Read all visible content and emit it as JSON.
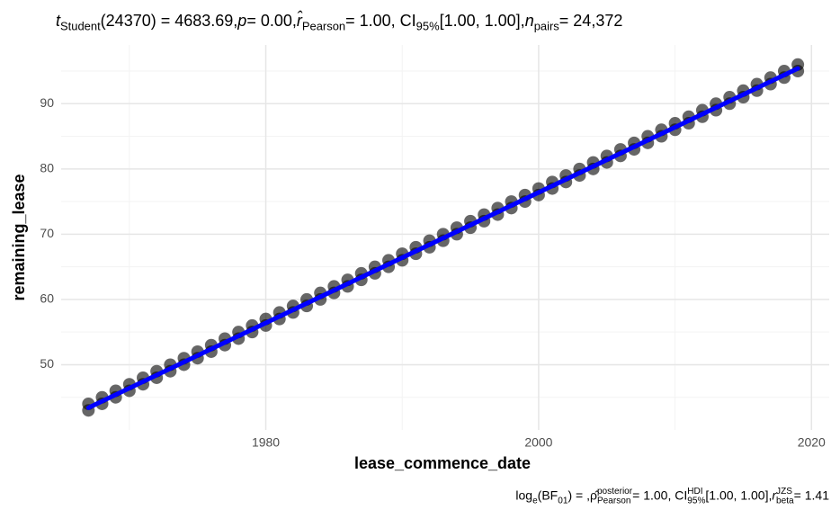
{
  "chart_data": {
    "type": "scatter",
    "title": [
      {
        "t": "t",
        "s": "italic"
      },
      {
        "t": "Student",
        "s": "sub"
      },
      {
        "t": "(24370) = 4683.69, ",
        "s": "normal"
      },
      {
        "t": "p",
        "s": "italic"
      },
      {
        "t": " = 0.00, ",
        "s": "normal"
      },
      {
        "t": "r̂",
        "s": "italic"
      },
      {
        "t": "Pearson",
        "s": "sub"
      },
      {
        "t": " = 1.00, CI",
        "s": "normal"
      },
      {
        "t": "95%",
        "s": "sub"
      },
      {
        "t": " [1.00, 1.00], ",
        "s": "normal"
      },
      {
        "t": "n",
        "s": "italic"
      },
      {
        "t": "pairs",
        "s": "sub"
      },
      {
        "t": " = 24,372",
        "s": "normal"
      }
    ],
    "caption": [
      {
        "t": "log",
        "s": "normal"
      },
      {
        "t": "e",
        "s": "sub"
      },
      {
        "t": "(BF",
        "s": "normal"
      },
      {
        "t": "01",
        "s": "sub"
      },
      {
        "t": ") = , ",
        "s": "normal"
      },
      {
        "t": "ρ̂",
        "s": "normal"
      },
      {
        "t": "posterior",
        "s": "sup"
      },
      {
        "t": "Pearson",
        "s": "sub"
      },
      {
        "t": " = 1.00, CI",
        "s": "normal"
      },
      {
        "t": "HDI",
        "s": "sup"
      },
      {
        "t": "95%",
        "s": "sub"
      },
      {
        "t": " [1.00, 1.00], ",
        "s": "normal"
      },
      {
        "t": "r",
        "s": "italic"
      },
      {
        "t": "JZS",
        "s": "sup"
      },
      {
        "t": "beta",
        "s": "sub"
      },
      {
        "t": " = 1.41",
        "s": "normal"
      }
    ],
    "x_label": "lease_commence_date",
    "y_label": "remaining_lease",
    "xlim": [
      1965,
      2021.3
    ],
    "ylim": [
      40,
      99
    ],
    "xticks": [
      1980,
      2000,
      2020
    ],
    "yticks": [
      50,
      60,
      70,
      80,
      90
    ],
    "xminor": [
      1970,
      1990,
      2010
    ],
    "yminor": [
      45,
      55,
      65,
      75,
      85,
      95
    ],
    "grid": true,
    "series": [
      {
        "color": "#000000",
        "x": [
          1967,
          1968,
          1969,
          1970,
          1971,
          1972,
          1973,
          1974,
          1975,
          1976,
          1977,
          1978,
          1979,
          1980,
          1981,
          1982,
          1983,
          1984,
          1985,
          1986,
          1987,
          1988,
          1989,
          1990,
          1991,
          1992,
          1993,
          1994,
          1995,
          1996,
          1997,
          1998,
          1999,
          2000,
          2001,
          2002,
          2003,
          2004,
          2005,
          2006,
          2007,
          2008,
          2009,
          2010,
          2011,
          2012,
          2013,
          2014,
          2015,
          2016,
          2017,
          2018,
          2019,
          1967,
          1968,
          1969,
          1970,
          1971,
          1972,
          1973,
          1974,
          1975,
          1976,
          1977,
          1978,
          1979,
          1980,
          1981,
          1982,
          1983,
          1984,
          1985,
          1986,
          1987,
          1988,
          1989,
          1990,
          1991,
          1992,
          1993,
          1994,
          1995,
          1996,
          1997,
          1998,
          1999,
          2000,
          2001,
          2002,
          2003,
          2004,
          2005,
          2006,
          2007,
          2008,
          2009,
          2010,
          2011,
          2012,
          2013,
          2014,
          2015,
          2016,
          2017,
          2018,
          2019
        ],
        "values": [
          43,
          44,
          45,
          46,
          47,
          48,
          49,
          50,
          51,
          52,
          53,
          54,
          55,
          56,
          57,
          58,
          59,
          60,
          61,
          62,
          63,
          64,
          65,
          66,
          67,
          68,
          69,
          70,
          71,
          72,
          73,
          74,
          75,
          76,
          77,
          78,
          79,
          80,
          81,
          82,
          83,
          84,
          85,
          86,
          87,
          88,
          89,
          90,
          91,
          92,
          93,
          94,
          95,
          44,
          45,
          46,
          47,
          48,
          49,
          50,
          51,
          52,
          53,
          54,
          55,
          56,
          57,
          58,
          59,
          60,
          61,
          62,
          63,
          64,
          65,
          66,
          67,
          68,
          69,
          70,
          71,
          72,
          73,
          74,
          75,
          76,
          77,
          78,
          79,
          80,
          81,
          82,
          83,
          84,
          85,
          86,
          87,
          88,
          89,
          90,
          91,
          92,
          93,
          94,
          95,
          96
        ]
      }
    ],
    "fit_line": {
      "color": "#0000ff",
      "x": [
        1967,
        2019
      ],
      "values": [
        43.4,
        95.4
      ]
    }
  }
}
